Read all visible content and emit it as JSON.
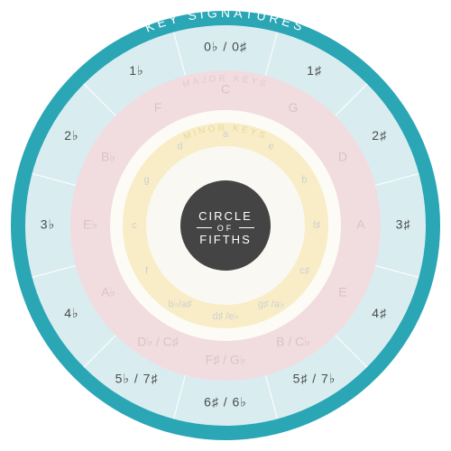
{
  "title": {
    "line1": "CIRCLE",
    "line2": "OF",
    "line3": "FIFTHS"
  },
  "ring_headers": {
    "outer": "KEY SIGNATURES",
    "middle": "MAJOR KEYS",
    "inner": "MINOR KEYS"
  },
  "colors": {
    "outer_ring": "#2aa6b5",
    "sig_ring": "#d9edf1",
    "major_ring": "#f1dcdf",
    "gap_ring": "#fdfbf6",
    "minor_ring": "#f8edc6",
    "inner_ring": "#faf8f3",
    "center": "#444444",
    "divider": "#ffffff",
    "major_header": "#e6c9cd",
    "minor_header": "#e8d89a",
    "sig_text": "#4a4a4a",
    "major_text": "#d8c3c6",
    "minor_text": "#d0d0d0"
  },
  "radii": {
    "outer": 238,
    "sig_out": 222,
    "sig_in": 172,
    "major_out": 172,
    "major_in": 128,
    "gap_in": 114,
    "minor_in": 88,
    "inner_in": 50
  },
  "positions": [
    {
      "angle": -90,
      "sig": "0♭ / 0♯",
      "major": "C",
      "minor": "a"
    },
    {
      "angle": -60,
      "sig": "1♯",
      "major": "G",
      "minor": "e"
    },
    {
      "angle": -30,
      "sig": "2♯",
      "major": "D",
      "minor": "b"
    },
    {
      "angle": 0,
      "sig": "3♯",
      "major": "A",
      "minor": "f♯"
    },
    {
      "angle": 30,
      "sig": "4♯",
      "major": "E",
      "minor": "c♯"
    },
    {
      "angle": 60,
      "sig": "5♯ / 7♭",
      "major": "B / C♭",
      "minor": "g♯ /a♭"
    },
    {
      "angle": 90,
      "sig": "6♯ / 6♭",
      "major": "F♯ / G♭",
      "minor": "d♯ /e♭"
    },
    {
      "angle": 120,
      "sig": "5♭ / 7♯",
      "major": "D♭ / C♯",
      "minor": "b♭/a♯"
    },
    {
      "angle": 150,
      "sig": "4♭",
      "major": "A♭",
      "minor": "f"
    },
    {
      "angle": 180,
      "sig": "3♭",
      "major": "E♭",
      "minor": "c"
    },
    {
      "angle": 210,
      "sig": "2♭",
      "major": "B♭",
      "minor": "g"
    },
    {
      "angle": 240,
      "sig": "1♭",
      "major": "F",
      "minor": "d"
    }
  ]
}
